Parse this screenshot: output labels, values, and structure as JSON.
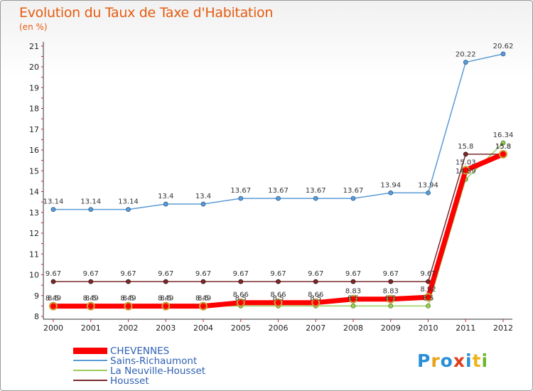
{
  "chart": {
    "title": "Evolution du Taux de Taxe d'Habitation",
    "units": "(en %)"
  },
  "logo": {
    "text": "Proxiti",
    "letter_colors": [
      "#2a8fd6",
      "#e8a21a",
      "#2a8fd6",
      "#e23c1b",
      "#2a8fd6",
      "#f0b31c",
      "#6cb52c"
    ]
  },
  "chart_data": {
    "type": "line",
    "x": [
      "2000",
      "2001",
      "2002",
      "2003",
      "2004",
      "2005",
      "2006",
      "2007",
      "2008",
      "2009",
      "2010",
      "2011",
      "2012"
    ],
    "ylim": [
      8,
      21
    ],
    "y_ticks": [
      "8",
      "9",
      "10",
      "11",
      "12",
      "13",
      "14",
      "15",
      "16",
      "17",
      "18",
      "19",
      "20",
      "21"
    ],
    "grid": false,
    "legend_position": "bottom-left",
    "series": [
      {
        "name": "CHEVENNES",
        "color": "#ff0000",
        "values": [
          8.49,
          8.49,
          8.49,
          8.49,
          8.49,
          8.66,
          8.66,
          8.66,
          8.83,
          8.83,
          8.92,
          15.03,
          15.8
        ],
        "labels": [
          "8.49",
          "8.49",
          "8.49",
          "8.49",
          "8.49",
          "8.66",
          "8.66",
          "8.66",
          "8.83",
          "8.83",
          "8.92",
          "15.03",
          "15.8"
        ]
      },
      {
        "name": "Sains-Richaumont",
        "color": "#5b9bd5",
        "values": [
          13.14,
          13.14,
          13.14,
          13.4,
          13.4,
          13.67,
          13.67,
          13.67,
          13.67,
          13.94,
          13.94,
          20.22,
          20.62
        ],
        "labels": [
          "13.14",
          "13.14",
          "13.14",
          "13.4",
          "13.4",
          "13.67",
          "13.67",
          "13.67",
          "13.67",
          "13.94",
          "13.94",
          "20.22",
          "20.62"
        ]
      },
      {
        "name": "La Neuville-Housset",
        "color": "#9acd5a",
        "values": [
          8.5,
          8.5,
          8.5,
          8.5,
          8.5,
          8.5,
          8.5,
          8.5,
          8.5,
          8.5,
          8.5,
          14.59,
          16.34
        ],
        "labels": [
          "8.5",
          "8.5",
          "8.5",
          "8.5",
          "8.5",
          "8.5",
          "8.5",
          "8.5",
          "8.5",
          "8.5",
          "8.5",
          "14.59",
          "16.34"
        ]
      },
      {
        "name": "Housset",
        "color": "#7a2a2a",
        "values": [
          9.67,
          9.67,
          9.67,
          9.67,
          9.67,
          9.67,
          9.67,
          9.67,
          9.67,
          9.67,
          9.67,
          15.8,
          15.8
        ],
        "labels": [
          "9.67",
          "9.67",
          "9.67",
          "9.67",
          "9.67",
          "9.67",
          "9.67",
          "9.67",
          "9.67",
          "9.67",
          "9.67",
          "15.8",
          "15.8"
        ]
      }
    ]
  }
}
